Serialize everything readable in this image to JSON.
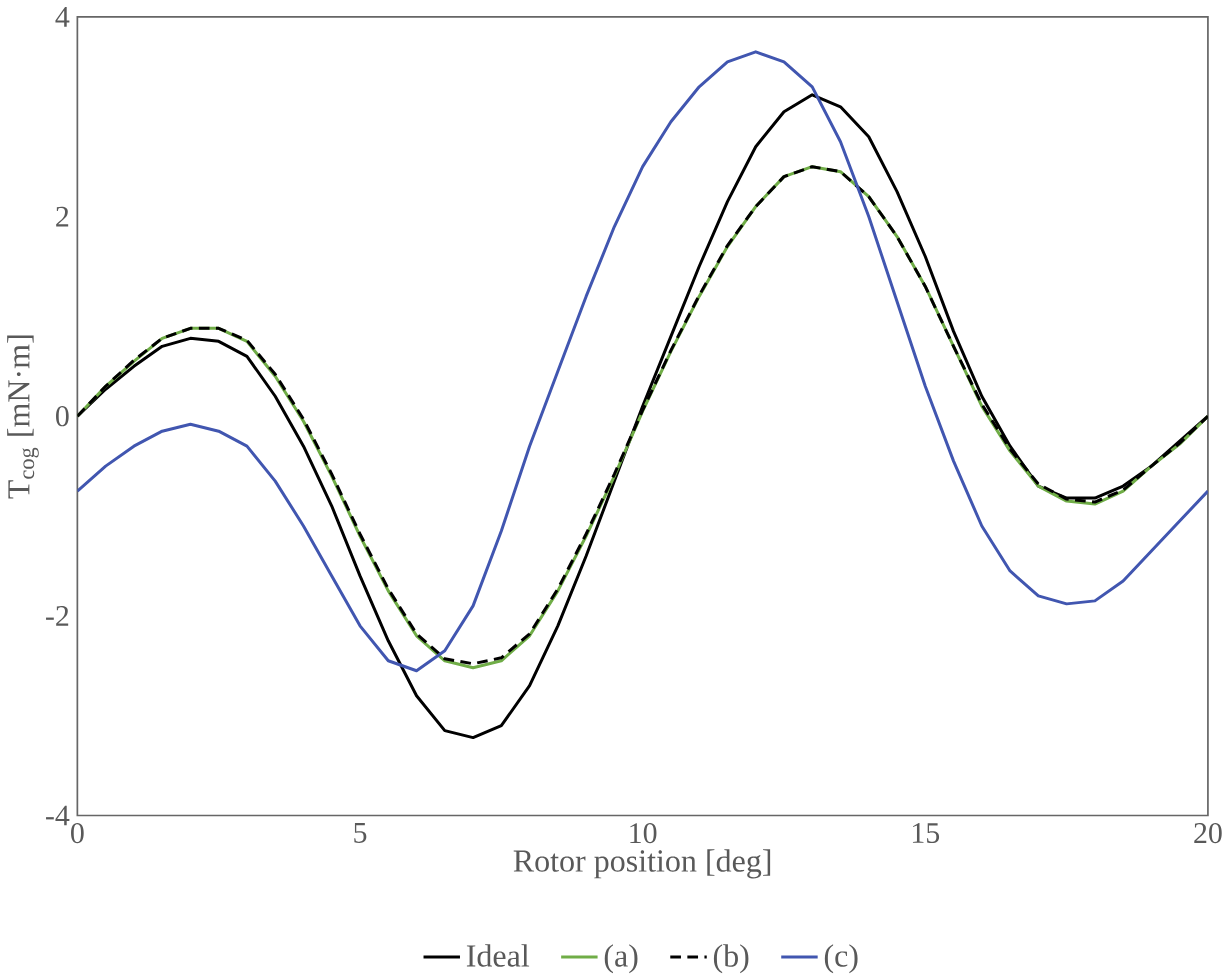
{
  "chart_data": {
    "type": "line",
    "xlabel": "Rotor position [deg]",
    "ylabel": "T$_{cog}$ [mN·m]",
    "x": [
      0,
      0.5,
      1,
      1.5,
      2,
      2.5,
      3,
      3.5,
      4,
      4.5,
      5,
      5.5,
      6,
      6.5,
      7,
      7.5,
      8,
      8.5,
      9,
      9.5,
      10,
      10.5,
      11,
      11.5,
      12,
      12.5,
      13,
      13.5,
      14,
      14.5,
      15,
      15.5,
      16,
      16.5,
      17,
      17.5,
      18,
      18.5,
      19,
      19.5,
      20
    ],
    "series": [
      {
        "name": "Ideal",
        "color": "#000000",
        "line_style": "solid",
        "values": [
          0,
          0.27,
          0.5,
          0.7,
          0.78,
          0.75,
          0.6,
          0.2,
          -0.3,
          -0.9,
          -1.6,
          -2.25,
          -2.8,
          -3.15,
          -3.22,
          -3.1,
          -2.7,
          -2.1,
          -1.4,
          -0.65,
          0.1,
          0.8,
          1.5,
          2.15,
          2.7,
          3.05,
          3.22,
          3.1,
          2.8,
          2.25,
          1.6,
          0.85,
          0.2,
          -0.3,
          -0.7,
          -0.82,
          -0.82,
          -0.7,
          -0.5,
          -0.25,
          0
        ]
      },
      {
        "name": "(a)",
        "color": "#70ad47",
        "line_style": "solid",
        "values": [
          0,
          0.3,
          0.55,
          0.78,
          0.88,
          0.88,
          0.75,
          0.4,
          -0.05,
          -0.6,
          -1.2,
          -1.75,
          -2.2,
          -2.45,
          -2.52,
          -2.45,
          -2.2,
          -1.75,
          -1.2,
          -0.6,
          0.05,
          0.65,
          1.2,
          1.7,
          2.1,
          2.4,
          2.5,
          2.45,
          2.2,
          1.8,
          1.3,
          0.7,
          0.1,
          -0.35,
          -0.7,
          -0.85,
          -0.88,
          -0.75,
          -0.5,
          -0.28,
          0
        ]
      },
      {
        "name": "(b)",
        "color": "#000000",
        "line_style": "dashed",
        "values": [
          0,
          0.3,
          0.56,
          0.78,
          0.88,
          0.88,
          0.76,
          0.42,
          -0.03,
          -0.58,
          -1.18,
          -1.73,
          -2.18,
          -2.43,
          -2.48,
          -2.42,
          -2.18,
          -1.73,
          -1.18,
          -0.58,
          0.06,
          0.66,
          1.21,
          1.71,
          2.1,
          2.4,
          2.5,
          2.45,
          2.2,
          1.8,
          1.3,
          0.7,
          0.12,
          -0.33,
          -0.68,
          -0.83,
          -0.86,
          -0.74,
          -0.5,
          -0.27,
          0
        ]
      },
      {
        "name": "(c)",
        "color": "#4156b0",
        "line_style": "solid",
        "values": [
          -0.75,
          -0.5,
          -0.3,
          -0.15,
          -0.08,
          -0.15,
          -0.3,
          -0.65,
          -1.1,
          -1.6,
          -2.1,
          -2.45,
          -2.55,
          -2.35,
          -1.9,
          -1.15,
          -0.3,
          0.45,
          1.2,
          1.9,
          2.5,
          2.95,
          3.3,
          3.55,
          3.65,
          3.55,
          3.3,
          2.75,
          2.0,
          1.15,
          0.3,
          -0.45,
          -1.1,
          -1.55,
          -1.8,
          -1.88,
          -1.85,
          -1.65,
          -1.35,
          -1.05,
          -0.75
        ]
      }
    ],
    "xlim": [
      0,
      20
    ],
    "xticks": [
      0,
      5,
      10,
      15,
      20
    ],
    "ylim": [
      -4,
      4
    ],
    "yticks": [
      -4,
      -2,
      0,
      2,
      4
    ],
    "grid": false,
    "legend": "bottom",
    "marker": "none"
  }
}
